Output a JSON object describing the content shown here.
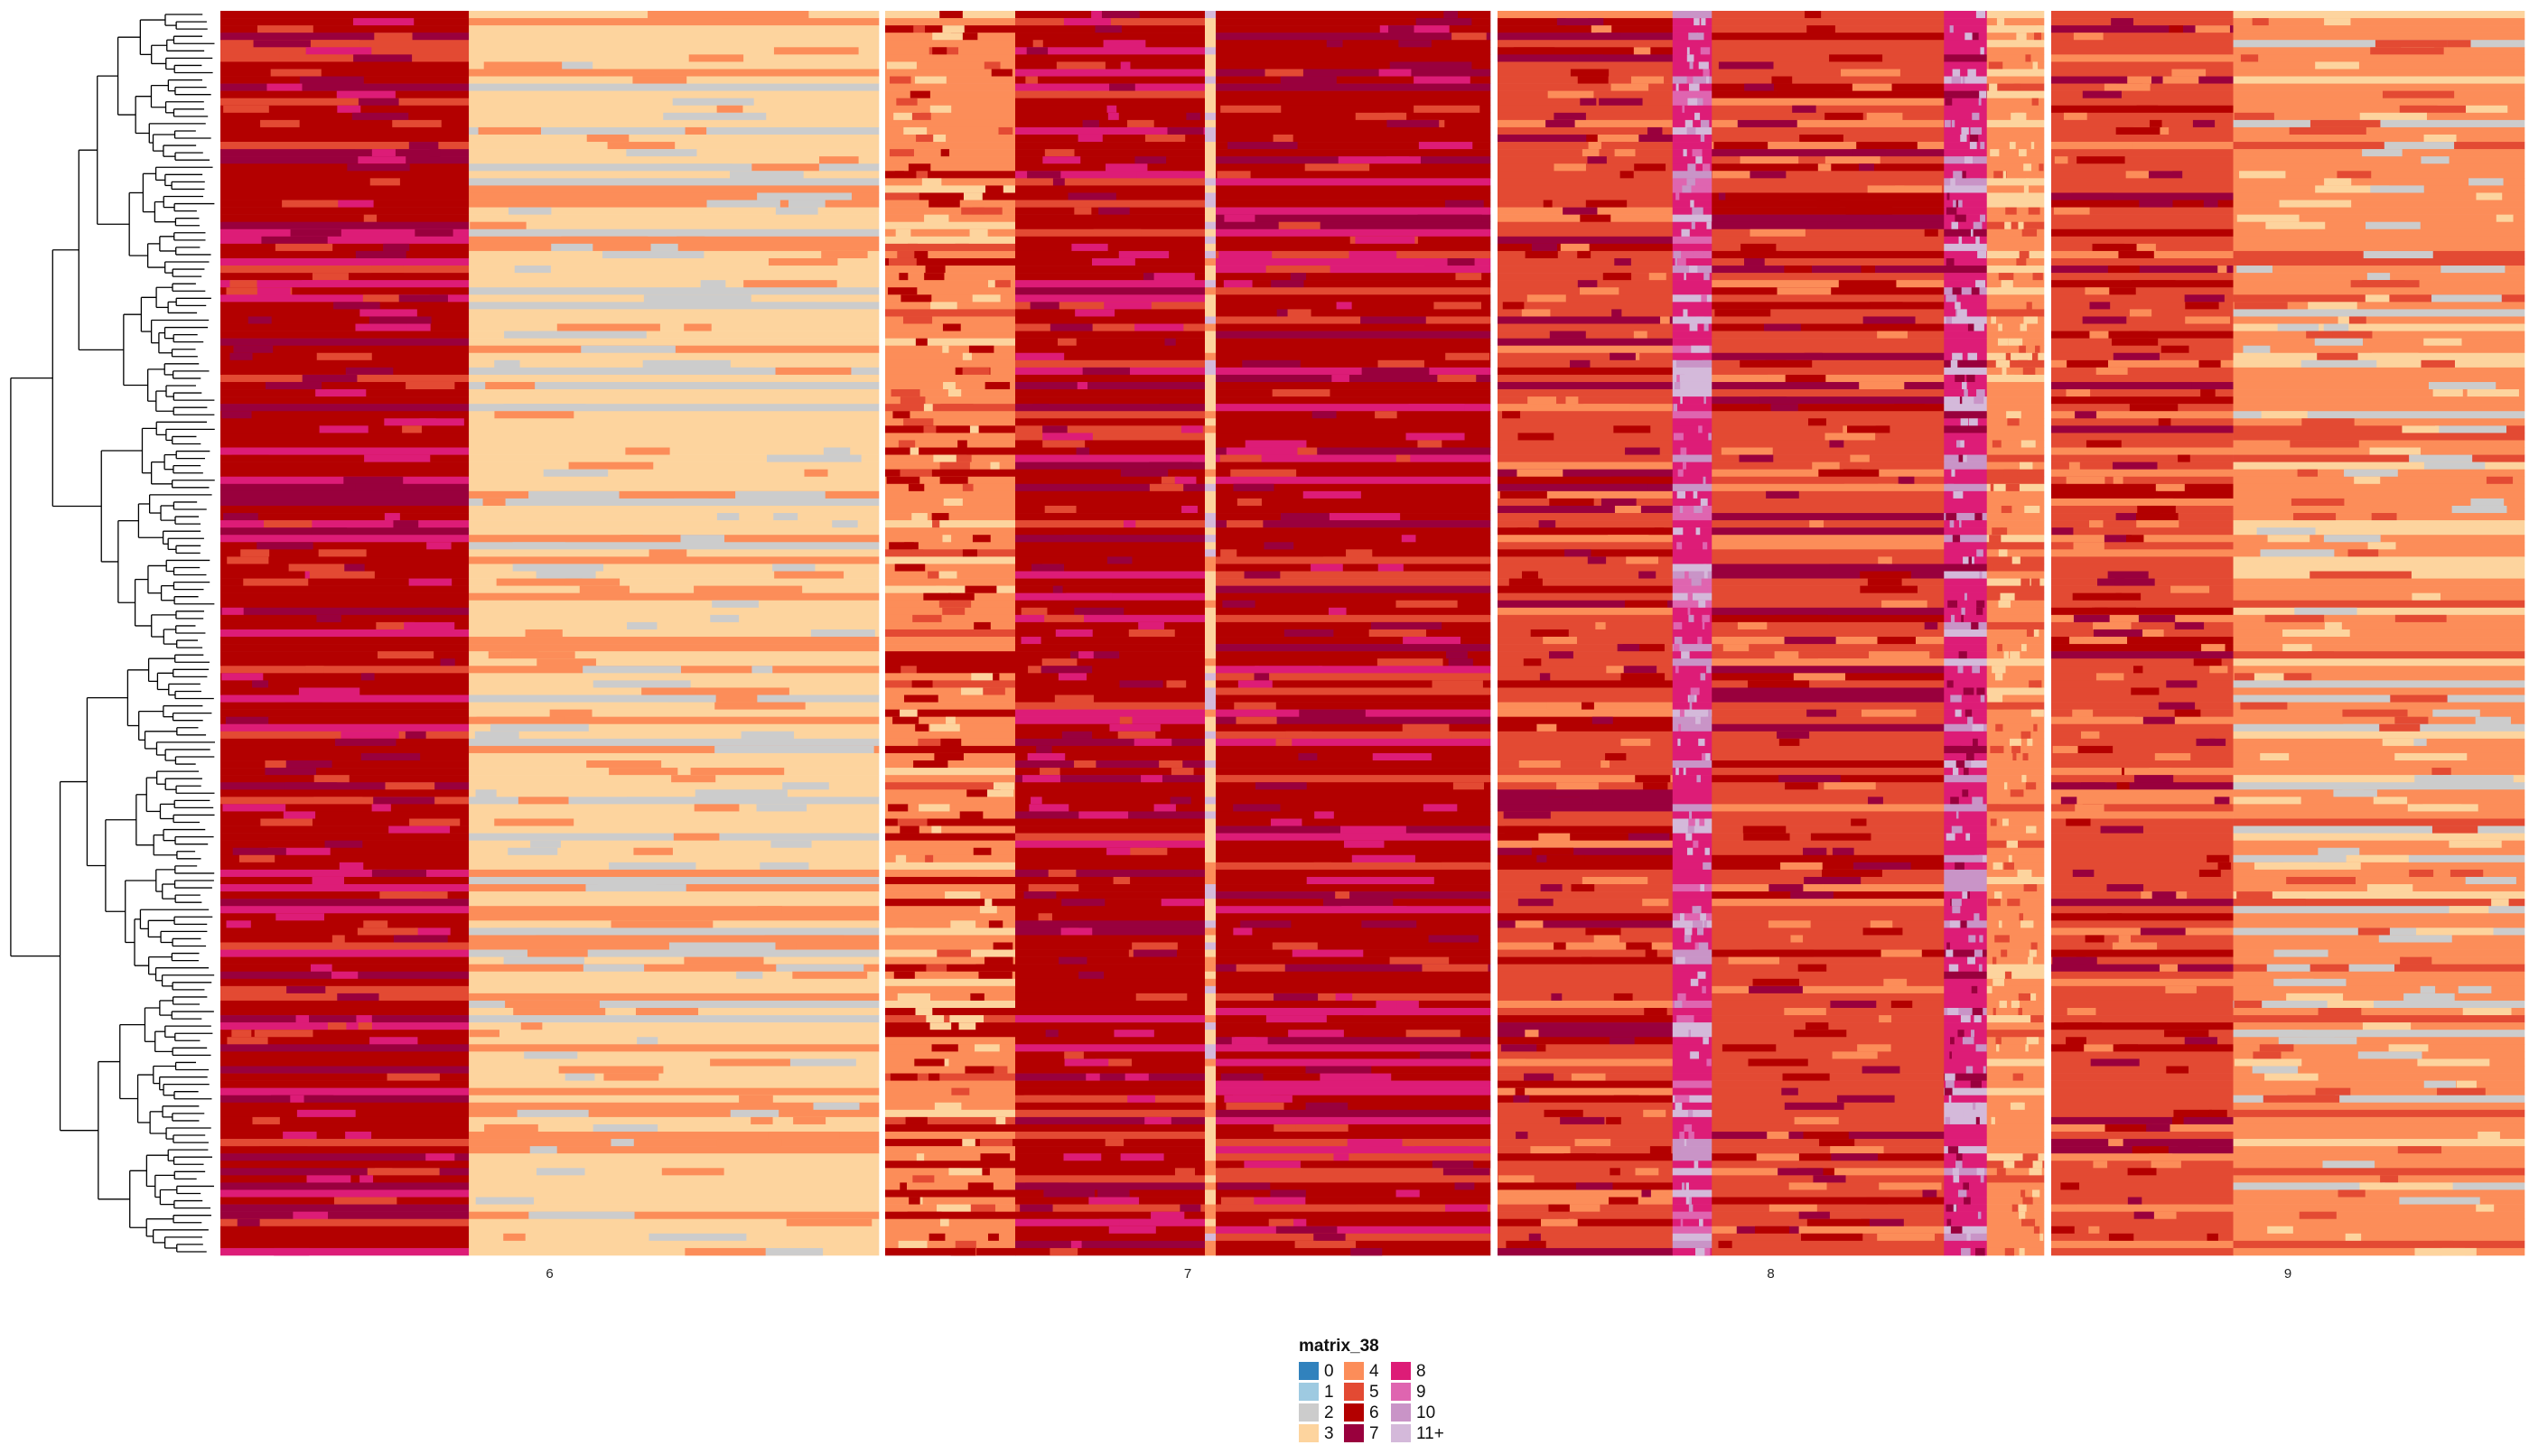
{
  "chart_data": {
    "type": "heatmap",
    "title": "",
    "xlabel": "",
    "ylabel": "",
    "row_count": 171,
    "dendrogram": "rows",
    "panels": [
      {
        "label": "6",
        "columns": [
          {
            "width": 1.0,
            "base": "6",
            "alt": [
              "7",
              "5",
              "8"
            ]
          },
          {
            "width": 1.65,
            "base": "3",
            "alt": [
              "2",
              "4"
            ]
          }
        ]
      },
      {
        "label": "7",
        "columns": [
          {
            "width": 0.72,
            "base": "4",
            "alt": [
              "5",
              "3",
              "6"
            ]
          },
          {
            "width": 1.05,
            "base": "6",
            "alt": [
              "7",
              "8",
              "5"
            ]
          },
          {
            "width": 0.06,
            "base": "3",
            "alt": [
              "4",
              "11+"
            ]
          },
          {
            "width": 1.52,
            "base": "6",
            "alt": [
              "7",
              "5",
              "8"
            ]
          }
        ]
      },
      {
        "label": "8",
        "columns": [
          {
            "width": 0.98,
            "base": "5",
            "alt": [
              "4",
              "6",
              "7"
            ]
          },
          {
            "width": 0.22,
            "base": "8",
            "alt": [
              "11+",
              "10",
              "9"
            ]
          },
          {
            "width": 1.3,
            "base": "5",
            "alt": [
              "6",
              "7",
              "4"
            ]
          },
          {
            "width": 0.24,
            "base": "8",
            "alt": [
              "11+",
              "7",
              "10"
            ]
          },
          {
            "width": 0.32,
            "base": "4",
            "alt": [
              "3",
              "5"
            ]
          }
        ]
      },
      {
        "label": "9",
        "columns": [
          {
            "width": 1.0,
            "base": "5",
            "alt": [
              "6",
              "7",
              "4"
            ]
          },
          {
            "width": 1.6,
            "base": "4",
            "alt": [
              "3",
              "5",
              "2"
            ]
          }
        ]
      }
    ],
    "legend": {
      "title": "matrix_38",
      "position": "bottom-center",
      "items": [
        {
          "label": "0",
          "color": "#3182bd"
        },
        {
          "label": "1",
          "color": "#9ecae1"
        },
        {
          "label": "2",
          "color": "#cccccc"
        },
        {
          "label": "3",
          "color": "#fdd49e"
        },
        {
          "label": "4",
          "color": "#fc8d59"
        },
        {
          "label": "5",
          "color": "#e34a33"
        },
        {
          "label": "6",
          "color": "#b30000"
        },
        {
          "label": "7",
          "color": "#99003d"
        },
        {
          "label": "8",
          "color": "#dd1c77"
        },
        {
          "label": "9",
          "color": "#df65b0"
        },
        {
          "label": "10",
          "color": "#c994c7"
        },
        {
          "label": "11+",
          "color": "#d4b9da"
        }
      ]
    }
  }
}
